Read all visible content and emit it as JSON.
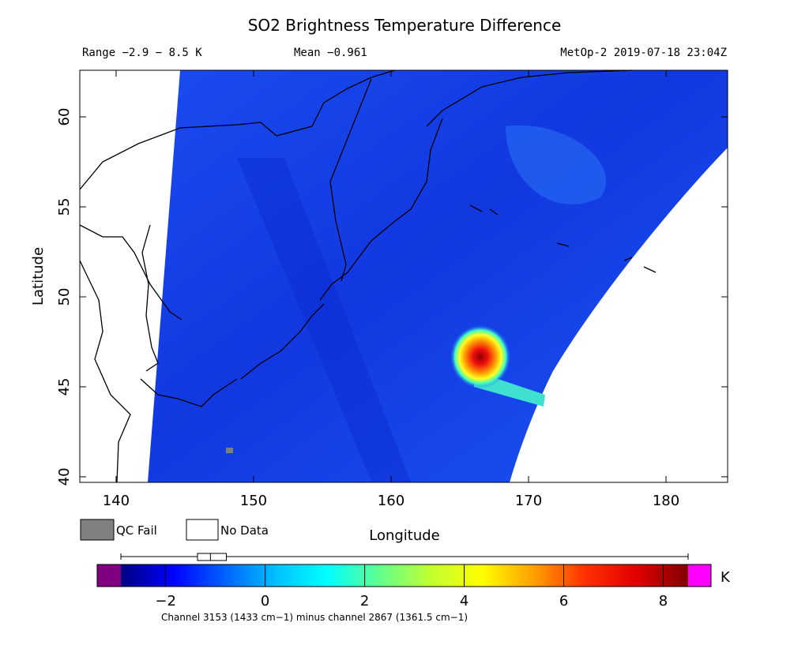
{
  "header": {
    "title": "SO2 Brightness Temperature Difference",
    "range": "Range −2.9 − 8.5 K",
    "mean": "Mean −0.961",
    "source": "MetOp-2 2019-07-18 23:04Z"
  },
  "chart_data": {
    "type": "map",
    "xlabel": "Longitude",
    "ylabel": "Latitude",
    "xlim": [
      137.36,
      184.48
    ],
    "ylim": [
      39.69,
      62.59
    ],
    "xticks": [
      140,
      150,
      160,
      170,
      180
    ],
    "yticks": [
      40,
      45,
      50,
      55,
      60
    ],
    "legend": [
      {
        "name": "QC Fail",
        "color": "#808080"
      },
      {
        "name": "No Data",
        "color": "#ffffff"
      }
    ],
    "colorbar": {
      "lim": [
        -2.9,
        8.5
      ],
      "unit": "K",
      "ticks": [
        {
          "value": -2,
          "label": "−2"
        },
        0,
        2,
        4,
        6,
        8
      ],
      "colors": [
        "#00007f",
        "#0000ff",
        "#0060ff",
        "#00c0ff",
        "#00ffff",
        "#60ff90",
        "#c0ff30",
        "#ffff00",
        "#ffa000",
        "#ff3000",
        "#e00000",
        "#800000"
      ],
      "under_color": "#800080",
      "over_color": "#ff00ff",
      "caption": "Channel 3153 (1433 cm−1) minus channel 2867 (1361.5 cm−1)"
    },
    "distribution": {
      "min": -2.9,
      "q1": -1.36,
      "median": -1.1,
      "q3": -0.78,
      "max": 8.5
    }
  }
}
